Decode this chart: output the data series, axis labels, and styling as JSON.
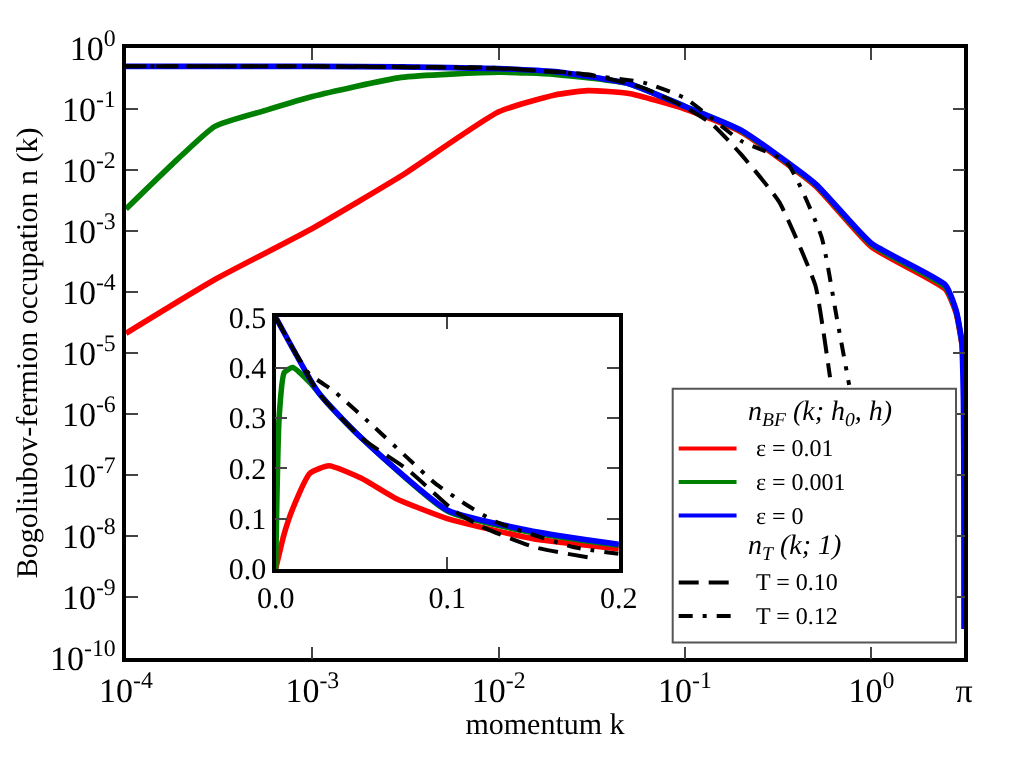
{
  "chart_data": [
    {
      "type": "line",
      "xlabel": "momentum k",
      "ylabel": "Bogoliubov-fermion occupation n (k)",
      "log": "xy",
      "xlim": [
        0.0001,
        3.14159
      ],
      "xticks": [
        {
          "value": 0.0001,
          "label": "10$^{-4}$"
        },
        {
          "value": 0.001,
          "label": "10$^{-3}$"
        },
        {
          "value": 0.01,
          "label": "10$^{-2}$"
        },
        {
          "value": 0.1,
          "label": "10$^{-1}$"
        },
        {
          "value": 1,
          "label": "10$^{0}$"
        },
        {
          "value": 3.14159,
          "label": "π"
        }
      ],
      "ylim": [
        1e-10,
        1
      ],
      "yticks": [
        {
          "value": 1,
          "label": "10$^{0}$"
        },
        {
          "value": 0.1,
          "label": "10$^{-1}$"
        },
        {
          "value": 0.01,
          "label": "10$^{-2}$"
        },
        {
          "value": 0.001,
          "label": "10$^{-3}$"
        },
        {
          "value": 0.0001,
          "label": "10$^{-4}$"
        },
        {
          "value": 1e-05,
          "label": "10$^{-5}$"
        },
        {
          "value": 1e-06,
          "label": "10$^{-6}$"
        },
        {
          "value": 1e-07,
          "label": "10$^{-7}$"
        },
        {
          "value": 1e-08,
          "label": "10$^{-8}$"
        },
        {
          "value": 1e-09,
          "label": "10$^{-9}$"
        },
        {
          "value": 1e-10,
          "label": "10$^{-10}$"
        }
      ],
      "grid": false,
      "legend": "bottom right",
      "legend_title": [
        "n$_{BF}$ (k; h$_{0}$, h)",
        "n$_{T}$ (k; 1)"
      ],
      "series": [
        {
          "name": "ε = 0.01",
          "color": "#ff0000",
          "line_style": "solid",
          "x": [
            0.0001,
            0.0003,
            0.001,
            0.003,
            0.01,
            0.02,
            0.03,
            0.05,
            0.1,
            0.2,
            0.5,
            1,
            2.5,
            2.85,
            3.05
          ],
          "values": [
            2.1e-05,
            0.00016,
            0.0011,
            0.008,
            0.09,
            0.17,
            0.2,
            0.18,
            0.1,
            0.042,
            0.0055,
            0.00055,
            0.00011,
            4.5e-05,
            1.5e-05
          ]
        },
        {
          "name": "ε = 0.001",
          "color": "#008000",
          "line_style": "solid",
          "x": [
            0.0001,
            0.000178,
            0.0003,
            0.00056,
            0.001,
            0.003,
            0.01,
            0.02,
            0.05,
            0.1,
            0.2,
            0.5,
            1,
            2.5,
            2.85,
            3.05
          ],
          "values": [
            0.0023,
            0.0126,
            0.052,
            0.095,
            0.16,
            0.33,
            0.4,
            0.37,
            0.26,
            0.11,
            0.044,
            0.0058,
            0.0006,
            0.00012,
            4.8e-05,
            1.6e-05
          ]
        },
        {
          "name": "ε = 0",
          "color": "#0000ff",
          "line_style": "solid",
          "x": [
            0.0001,
            0.001,
            0.003,
            0.01,
            0.02,
            0.05,
            0.1,
            0.2,
            0.5,
            1,
            2.5,
            2.85,
            3.05,
            3.12,
            3.138,
            3.1413
          ],
          "values": [
            0.5,
            0.5,
            0.49,
            0.46,
            0.41,
            0.26,
            0.11,
            0.045,
            0.006,
            0.00063,
            0.00013,
            5e-05,
            1.6e-05,
            1.6e-06,
            4e-08,
            3e-10
          ]
        },
        {
          "name": "T = 0.10",
          "color": "#000000",
          "line_style": "dashed",
          "x": [
            0.0001,
            0.001,
            0.01,
            0.03,
            0.06,
            0.1,
            0.14,
            0.2,
            0.32,
            0.5,
            0.55,
            0.6
          ],
          "values": [
            0.5,
            0.5,
            0.46,
            0.37,
            0.22,
            0.107,
            0.056,
            0.018,
            0.003,
            0.00013,
            2.5e-05,
            4e-06
          ]
        },
        {
          "name": "T = 0.12",
          "color": "#000000",
          "line_style": "dashdot",
          "x": [
            0.0001,
            0.001,
            0.01,
            0.03,
            0.06,
            0.1,
            0.2,
            0.35,
            0.54,
            0.65,
            0.76
          ],
          "values": [
            0.5,
            0.5,
            0.47,
            0.36,
            0.27,
            0.15,
            0.03,
            0.0135,
            0.0008,
            4e-05,
            3e-06
          ]
        }
      ]
    },
    {
      "type": "line",
      "xlim": [
        0,
        0.2
      ],
      "xticks": [
        {
          "value": 0,
          "label": "0.0"
        },
        0.1,
        0.2
      ],
      "ylim": [
        0,
        0.5
      ],
      "yticks": [
        {
          "value": 0,
          "label": "0.0"
        },
        0.1,
        0.2,
        0.3,
        0.4,
        0.5
      ],
      "grid": false,
      "series": [
        {
          "color": "#ff0000",
          "line_style": "solid",
          "x": [
            0,
            0.005,
            0.01,
            0.02,
            0.031,
            0.05,
            0.07,
            0.1,
            0.15,
            0.2
          ],
          "values": [
            0,
            0.07,
            0.12,
            0.19,
            0.205,
            0.18,
            0.14,
            0.1,
            0.06,
            0.04
          ]
        },
        {
          "color": "#008000",
          "line_style": "solid",
          "x": [
            0,
            0.002,
            0.005,
            0.01,
            0.02,
            0.03,
            0.05,
            0.1,
            0.15,
            0.2
          ],
          "values": [
            0,
            0.3,
            0.39,
            0.4,
            0.37,
            0.33,
            0.26,
            0.115,
            0.072,
            0.047
          ]
        },
        {
          "color": "#0000ff",
          "line_style": "solid",
          "x": [
            0,
            0.025,
            0.05,
            0.1,
            0.15,
            0.2
          ],
          "values": [
            0.5,
            0.35,
            0.26,
            0.117,
            0.075,
            0.049
          ]
        },
        {
          "color": "#000000",
          "line_style": "dashed",
          "x": [
            0,
            0.025,
            0.05,
            0.077,
            0.105,
            0.122,
            0.151,
            0.182
          ],
          "values": [
            0.5,
            0.35,
            0.26,
            0.197,
            0.113,
            0.081,
            0.043,
            0.023
          ]
        },
        {
          "color": "#000000",
          "line_style": "dashdot",
          "x": [
            0,
            0.019,
            0.035,
            0.058,
            0.077,
            0.093,
            0.11,
            0.128,
            0.174,
            0.2
          ],
          "values": [
            0.5,
            0.39,
            0.35,
            0.28,
            0.22,
            0.17,
            0.13,
            0.094,
            0.043,
            0.03
          ]
        }
      ]
    }
  ]
}
